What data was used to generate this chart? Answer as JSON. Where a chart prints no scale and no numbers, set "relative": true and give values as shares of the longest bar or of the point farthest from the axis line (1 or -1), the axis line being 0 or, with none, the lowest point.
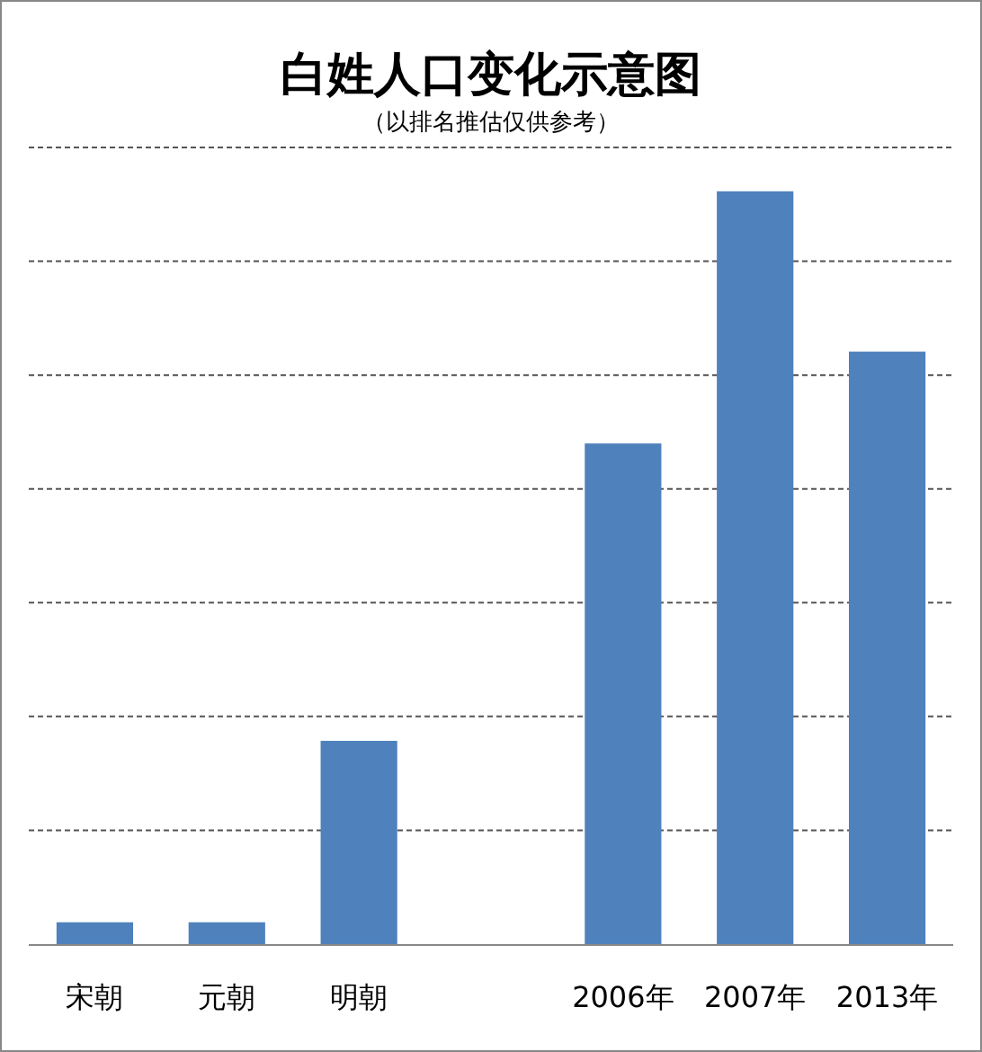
{
  "chart_data": {
    "type": "bar",
    "title": "白姓人口变化示意图",
    "subtitle": "（以排名推估仅供参考）",
    "categories": [
      "宋朝",
      "元朝",
      "明朝",
      null,
      "2006年",
      "2007年",
      "2013年"
    ],
    "values": [
      0.029,
      0.029,
      0.27,
      null,
      0.665,
      1,
      0.787
    ],
    "color": "#4f81bd",
    "relative": true,
    "grid": "y"
  }
}
